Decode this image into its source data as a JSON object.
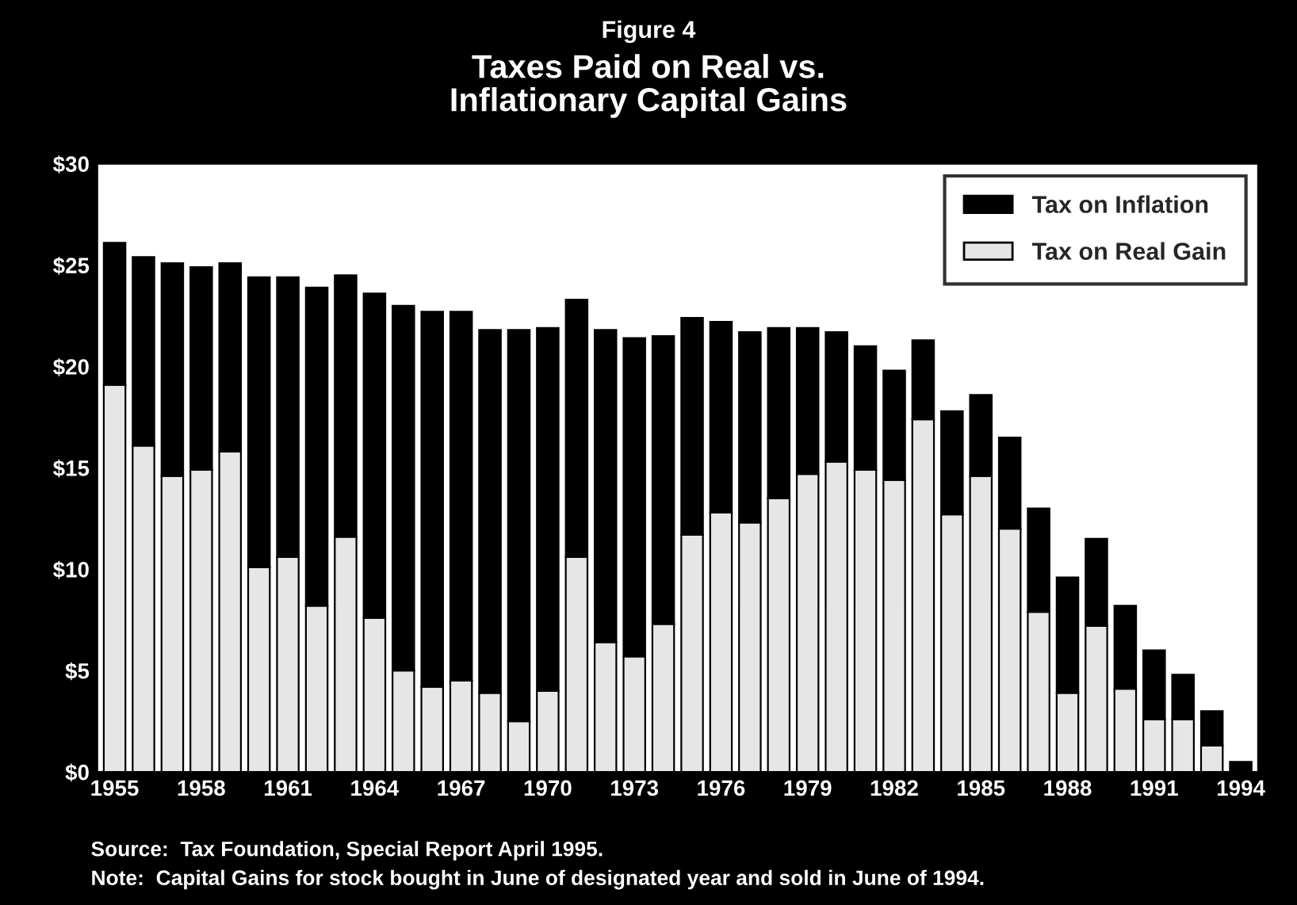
{
  "chart_data": {
    "type": "bar",
    "stacked": true,
    "title": "Figure 4",
    "subtitle": "Taxes Paid on Real vs.\nInflationary Capital Gains",
    "categories": [
      "1955",
      null,
      null,
      "1958",
      null,
      null,
      "1961",
      null,
      null,
      "1964",
      null,
      null,
      "1967",
      null,
      null,
      "1970",
      null,
      null,
      "1973",
      null,
      null,
      "1976",
      null,
      null,
      "1979",
      null,
      null,
      "1982",
      null,
      null,
      "1985",
      null,
      null,
      "1988",
      null,
      null,
      "1991",
      null,
      null,
      "1994"
    ],
    "series": [
      {
        "name": "Tax on Real Gain",
        "color": "#e6e6e6",
        "values": [
          19.1,
          16.1,
          14.6,
          14.9,
          15.8,
          10.1,
          10.6,
          8.2,
          11.6,
          7.6,
          5.0,
          4.2,
          4.5,
          3.9,
          2.5,
          4.0,
          10.6,
          6.4,
          5.7,
          7.3,
          11.7,
          12.8,
          12.3,
          13.5,
          14.7,
          15.3,
          14.9,
          14.4,
          17.4,
          12.7,
          14.6,
          12.0,
          7.9,
          3.9,
          7.2,
          4.1,
          2.6,
          2.6,
          1.3,
          0
        ]
      },
      {
        "name": "Tax on Inflation",
        "color": "#000000",
        "values": [
          7.0,
          9.3,
          10.5,
          10.0,
          9.3,
          14.3,
          13.8,
          15.7,
          12.9,
          16.0,
          18.0,
          18.5,
          18.2,
          17.9,
          19.3,
          17.9,
          12.7,
          15.4,
          15.7,
          14.2,
          10.7,
          9.4,
          9.4,
          8.4,
          7.2,
          6.4,
          6.1,
          5.4,
          3.9,
          5.1,
          4.0,
          4.5,
          5.1,
          5.7,
          4.3,
          4.1,
          3.4,
          2.2,
          1.7,
          0.5
        ]
      }
    ],
    "ylim": [
      0,
      30
    ],
    "yticks": [
      {
        "value": 0,
        "label": "$0"
      },
      {
        "value": 5,
        "label": "$5"
      },
      {
        "value": 10,
        "label": "$10"
      },
      {
        "value": 15,
        "label": "$15"
      },
      {
        "value": 20,
        "label": "$20"
      },
      {
        "value": 25,
        "label": "$25"
      },
      {
        "value": 30,
        "label": "$30"
      }
    ],
    "legend": "top right",
    "grid": false,
    "annotations": [
      "Source:  Tax Foundation, Special Report April 1995.",
      "Note:  Capital Gains for stock bought in June of designated year and sold in June of 1994."
    ]
  }
}
